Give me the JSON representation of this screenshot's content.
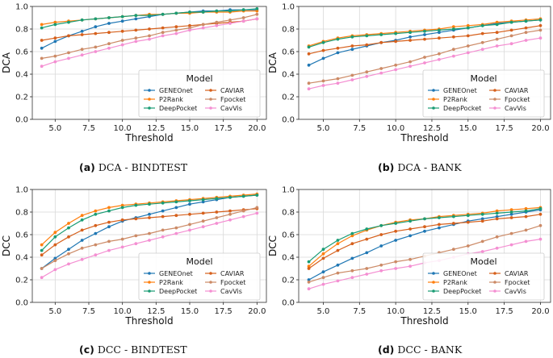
{
  "chart_data": [
    {
      "type": "line",
      "caption_label": "(a)",
      "caption_text": "DCA - BINDTEST",
      "xlabel": "Threshold",
      "ylabel": "DCA",
      "xlim": [
        3.3,
        20.7
      ],
      "ylim": [
        0.0,
        1.0
      ],
      "xticks": [
        "5.0",
        "7.5",
        "10.0",
        "12.5",
        "15.0",
        "17.5",
        "20.0"
      ],
      "yticks": [
        "0.0",
        "0.2",
        "0.4",
        "0.6",
        "0.8",
        "1.0"
      ],
      "legend_title": "Model",
      "legend_position": "lower-right",
      "x": [
        4,
        5,
        6,
        7,
        8,
        9,
        10,
        11,
        12,
        13,
        14,
        15,
        16,
        17,
        18,
        19,
        20
      ],
      "series": [
        {
          "name": "GENEOnet",
          "color": "#1f77b4",
          "marker": "circle",
          "values": [
            0.63,
            0.69,
            0.74,
            0.78,
            0.82,
            0.85,
            0.87,
            0.89,
            0.91,
            0.93,
            0.94,
            0.95,
            0.96,
            0.96,
            0.97,
            0.97,
            0.97
          ]
        },
        {
          "name": "P2Rank",
          "color": "#ff7f0e",
          "marker": "circle",
          "values": [
            0.84,
            0.86,
            0.87,
            0.88,
            0.89,
            0.9,
            0.91,
            0.92,
            0.93,
            0.93,
            0.94,
            0.94,
            0.95,
            0.95,
            0.95,
            0.96,
            0.96
          ]
        },
        {
          "name": "DeepPocket",
          "color": "#1a9c74",
          "marker": "circle",
          "values": [
            0.81,
            0.84,
            0.86,
            0.88,
            0.89,
            0.9,
            0.91,
            0.92,
            0.92,
            0.93,
            0.94,
            0.95,
            0.95,
            0.96,
            0.96,
            0.97,
            0.98
          ]
        },
        {
          "name": "CAVIAR",
          "color": "#d6601c",
          "marker": "circle",
          "values": [
            0.7,
            0.72,
            0.74,
            0.75,
            0.76,
            0.77,
            0.78,
            0.79,
            0.8,
            0.81,
            0.82,
            0.83,
            0.84,
            0.85,
            0.86,
            0.87,
            0.89
          ]
        },
        {
          "name": "Fpocket",
          "color": "#cc8a66",
          "marker": "circle",
          "values": [
            0.54,
            0.56,
            0.59,
            0.62,
            0.64,
            0.67,
            0.7,
            0.72,
            0.74,
            0.77,
            0.79,
            0.81,
            0.84,
            0.86,
            0.88,
            0.9,
            0.93
          ]
        },
        {
          "name": "CavVis",
          "color": "#f48fd2",
          "marker": "circle",
          "values": [
            0.47,
            0.51,
            0.54,
            0.57,
            0.6,
            0.63,
            0.66,
            0.69,
            0.71,
            0.74,
            0.76,
            0.79,
            0.81,
            0.83,
            0.85,
            0.87,
            0.89
          ]
        }
      ]
    },
    {
      "type": "line",
      "caption_label": "(b)",
      "caption_text": "DCA - BANK",
      "xlabel": "Threshold",
      "ylabel": "DCA",
      "xlim": [
        3.3,
        20.7
      ],
      "ylim": [
        0.0,
        1.0
      ],
      "xticks": [
        "5.0",
        "7.5",
        "10.0",
        "12.5",
        "15.0",
        "17.5",
        "20.0"
      ],
      "yticks": [
        "0.0",
        "0.2",
        "0.4",
        "0.6",
        "0.8",
        "1.0"
      ],
      "legend_title": "Model",
      "legend_position": "lower-right",
      "x": [
        4,
        5,
        6,
        7,
        8,
        9,
        10,
        11,
        12,
        13,
        14,
        15,
        16,
        17,
        18,
        19,
        20
      ],
      "series": [
        {
          "name": "GENEOnet",
          "color": "#1f77b4",
          "marker": "circle",
          "values": [
            0.48,
            0.54,
            0.59,
            0.62,
            0.65,
            0.68,
            0.7,
            0.73,
            0.75,
            0.77,
            0.79,
            0.81,
            0.83,
            0.85,
            0.86,
            0.87,
            0.88
          ]
        },
        {
          "name": "P2Rank",
          "color": "#ff7f0e",
          "marker": "circle",
          "values": [
            0.65,
            0.69,
            0.72,
            0.74,
            0.75,
            0.76,
            0.77,
            0.78,
            0.79,
            0.8,
            0.82,
            0.83,
            0.84,
            0.86,
            0.87,
            0.88,
            0.89
          ]
        },
        {
          "name": "DeepPocket",
          "color": "#1a9c74",
          "marker": "circle",
          "values": [
            0.64,
            0.68,
            0.71,
            0.73,
            0.74,
            0.75,
            0.76,
            0.77,
            0.78,
            0.79,
            0.8,
            0.81,
            0.83,
            0.84,
            0.86,
            0.87,
            0.88
          ]
        },
        {
          "name": "CAVIAR",
          "color": "#d6601c",
          "marker": "circle",
          "values": [
            0.58,
            0.61,
            0.63,
            0.65,
            0.66,
            0.68,
            0.69,
            0.7,
            0.71,
            0.72,
            0.73,
            0.74,
            0.76,
            0.77,
            0.79,
            0.81,
            0.83
          ]
        },
        {
          "name": "Fpocket",
          "color": "#cc8a66",
          "marker": "circle",
          "values": [
            0.32,
            0.34,
            0.36,
            0.39,
            0.42,
            0.45,
            0.48,
            0.51,
            0.55,
            0.58,
            0.62,
            0.65,
            0.68,
            0.71,
            0.74,
            0.77,
            0.79
          ]
        },
        {
          "name": "CavVis",
          "color": "#f48fd2",
          "marker": "circle",
          "values": [
            0.27,
            0.3,
            0.32,
            0.35,
            0.38,
            0.41,
            0.44,
            0.47,
            0.5,
            0.53,
            0.56,
            0.59,
            0.62,
            0.65,
            0.67,
            0.7,
            0.72
          ]
        }
      ]
    },
    {
      "type": "line",
      "caption_label": "(c)",
      "caption_text": "DCC - BINDTEST",
      "xlabel": "Threshold",
      "ylabel": "DCC",
      "xlim": [
        3.3,
        20.7
      ],
      "ylim": [
        0.0,
        1.0
      ],
      "xticks": [
        "5.0",
        "7.5",
        "10.0",
        "12.5",
        "15.0",
        "17.5",
        "20.0"
      ],
      "yticks": [
        "0.0",
        "0.2",
        "0.4",
        "0.6",
        "0.8",
        "1.0"
      ],
      "legend_title": "Model",
      "legend_position": "lower-right",
      "x": [
        4,
        5,
        6,
        7,
        8,
        9,
        10,
        11,
        12,
        13,
        14,
        15,
        16,
        17,
        18,
        19,
        20
      ],
      "series": [
        {
          "name": "GENEOnet",
          "color": "#1f77b4",
          "marker": "circle",
          "values": [
            0.3,
            0.39,
            0.47,
            0.55,
            0.61,
            0.67,
            0.72,
            0.75,
            0.78,
            0.81,
            0.84,
            0.87,
            0.89,
            0.91,
            0.93,
            0.94,
            0.95
          ]
        },
        {
          "name": "P2Rank",
          "color": "#ff7f0e",
          "marker": "circle",
          "values": [
            0.51,
            0.62,
            0.7,
            0.77,
            0.81,
            0.84,
            0.86,
            0.87,
            0.88,
            0.89,
            0.9,
            0.91,
            0.92,
            0.93,
            0.94,
            0.95,
            0.96
          ]
        },
        {
          "name": "DeepPocket",
          "color": "#1a9c74",
          "marker": "circle",
          "values": [
            0.46,
            0.58,
            0.66,
            0.73,
            0.78,
            0.81,
            0.84,
            0.86,
            0.87,
            0.88,
            0.89,
            0.9,
            0.91,
            0.92,
            0.93,
            0.94,
            0.95
          ]
        },
        {
          "name": "CAVIAR",
          "color": "#d6601c",
          "marker": "circle",
          "values": [
            0.42,
            0.51,
            0.58,
            0.64,
            0.68,
            0.71,
            0.73,
            0.74,
            0.75,
            0.76,
            0.77,
            0.78,
            0.79,
            0.8,
            0.81,
            0.82,
            0.83
          ]
        },
        {
          "name": "Fpocket",
          "color": "#cc8a66",
          "marker": "circle",
          "values": [
            0.3,
            0.37,
            0.43,
            0.48,
            0.51,
            0.54,
            0.56,
            0.59,
            0.61,
            0.64,
            0.66,
            0.69,
            0.72,
            0.75,
            0.78,
            0.81,
            0.84
          ]
        },
        {
          "name": "CavVis",
          "color": "#f48fd2",
          "marker": "circle",
          "values": [
            0.22,
            0.29,
            0.34,
            0.38,
            0.42,
            0.46,
            0.49,
            0.52,
            0.55,
            0.58,
            0.61,
            0.64,
            0.67,
            0.7,
            0.73,
            0.76,
            0.79
          ]
        }
      ]
    },
    {
      "type": "line",
      "caption_label": "(d)",
      "caption_text": "DCC - BANK",
      "xlabel": "Threshold",
      "ylabel": "DCC",
      "xlim": [
        3.3,
        20.7
      ],
      "ylim": [
        0.0,
        1.0
      ],
      "xticks": [
        "5.0",
        "7.5",
        "10.0",
        "12.5",
        "15.0",
        "17.5",
        "20.0"
      ],
      "yticks": [
        "0.0",
        "0.2",
        "0.4",
        "0.6",
        "0.8",
        "1.0"
      ],
      "legend_title": "Model",
      "legend_position": "lower-right",
      "x": [
        4,
        5,
        6,
        7,
        8,
        9,
        10,
        11,
        12,
        13,
        14,
        15,
        16,
        17,
        18,
        19,
        20
      ],
      "series": [
        {
          "name": "GENEOnet",
          "color": "#1f77b4",
          "marker": "circle",
          "values": [
            0.2,
            0.27,
            0.33,
            0.39,
            0.44,
            0.5,
            0.55,
            0.59,
            0.63,
            0.66,
            0.69,
            0.72,
            0.74,
            0.76,
            0.78,
            0.8,
            0.82
          ]
        },
        {
          "name": "P2Rank",
          "color": "#ff7f0e",
          "marker": "circle",
          "values": [
            0.32,
            0.43,
            0.52,
            0.59,
            0.64,
            0.68,
            0.71,
            0.73,
            0.74,
            0.76,
            0.77,
            0.78,
            0.79,
            0.81,
            0.82,
            0.83,
            0.84
          ]
        },
        {
          "name": "DeepPocket",
          "color": "#1a9c74",
          "marker": "circle",
          "values": [
            0.36,
            0.47,
            0.55,
            0.61,
            0.65,
            0.68,
            0.7,
            0.72,
            0.74,
            0.75,
            0.76,
            0.77,
            0.78,
            0.79,
            0.8,
            0.81,
            0.83
          ]
        },
        {
          "name": "CAVIAR",
          "color": "#d6601c",
          "marker": "circle",
          "values": [
            0.3,
            0.39,
            0.46,
            0.52,
            0.56,
            0.6,
            0.63,
            0.65,
            0.67,
            0.69,
            0.7,
            0.71,
            0.72,
            0.74,
            0.75,
            0.76,
            0.78
          ]
        },
        {
          "name": "Fpocket",
          "color": "#cc8a66",
          "marker": "circle",
          "values": [
            0.18,
            0.22,
            0.26,
            0.28,
            0.3,
            0.33,
            0.36,
            0.38,
            0.41,
            0.44,
            0.47,
            0.5,
            0.54,
            0.58,
            0.61,
            0.64,
            0.68
          ]
        },
        {
          "name": "CavVis",
          "color": "#f48fd2",
          "marker": "circle",
          "values": [
            0.12,
            0.16,
            0.19,
            0.22,
            0.25,
            0.28,
            0.3,
            0.32,
            0.35,
            0.37,
            0.4,
            0.43,
            0.45,
            0.48,
            0.51,
            0.54,
            0.56
          ]
        }
      ]
    }
  ]
}
